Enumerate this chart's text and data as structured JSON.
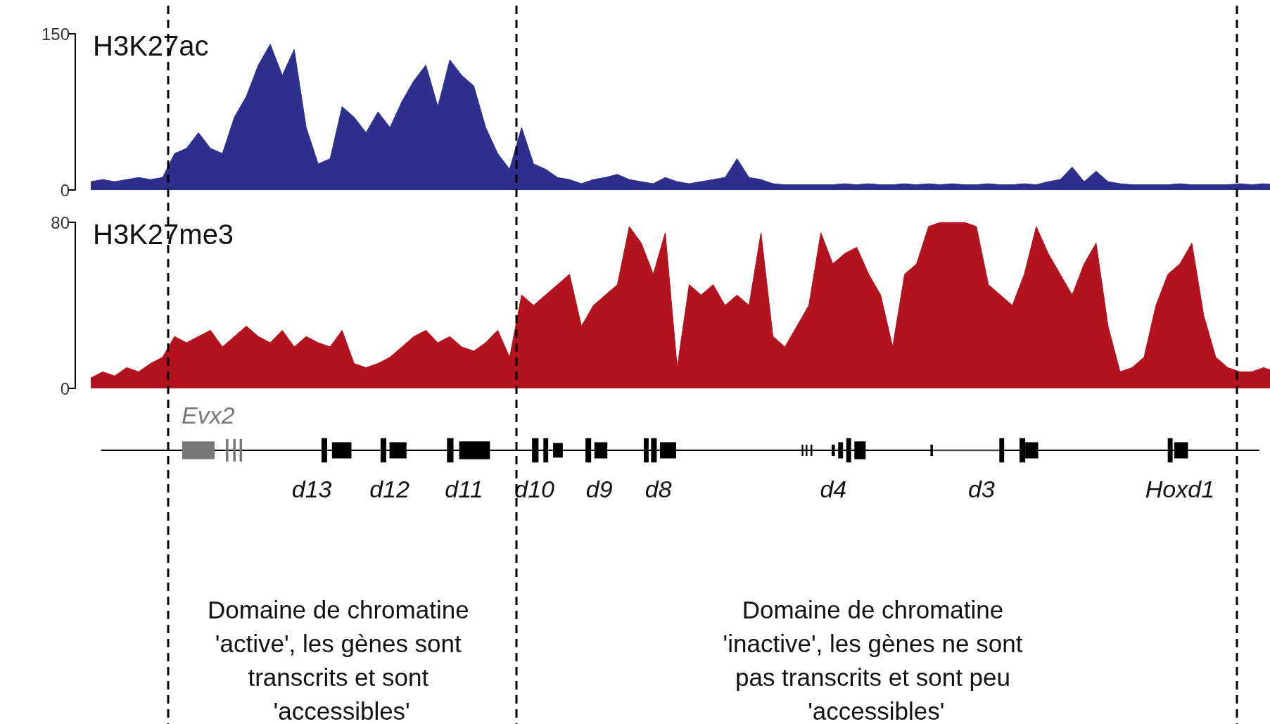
{
  "chart_data": [
    {
      "type": "area",
      "title": "H3K27ac",
      "tick_labels": "y",
      "marker": "none",
      "grid": false,
      "categories": [
        null,
        null,
        null,
        null,
        null,
        null,
        null,
        null,
        null,
        null,
        null,
        null,
        null,
        null,
        null,
        null,
        null,
        null,
        null,
        null,
        null,
        null,
        null,
        null,
        null,
        null,
        null,
        null,
        null,
        null,
        null,
        null,
        null,
        null,
        null,
        null,
        null,
        null,
        null,
        null,
        null,
        null,
        null,
        null,
        null,
        null,
        null,
        null,
        null,
        null,
        null,
        null,
        null,
        null,
        null,
        null,
        null,
        null,
        null,
        null,
        null,
        null,
        null,
        null,
        null,
        null,
        null,
        null,
        null,
        null,
        null,
        null,
        null,
        null,
        null,
        null,
        null,
        null,
        null,
        null,
        null,
        null,
        null,
        null,
        null,
        null,
        null,
        null,
        null,
        null,
        null,
        null,
        null,
        null,
        null,
        null,
        null,
        null,
        null,
        null
      ],
      "ylim": [
        0,
        150
      ],
      "yticks": [
        0,
        150
      ],
      "series": [
        {
          "color": "#2e2f8c",
          "values": [
            8,
            10,
            8,
            10,
            12,
            10,
            12,
            35,
            40,
            55,
            40,
            35,
            70,
            90,
            120,
            140,
            110,
            135,
            60,
            25,
            30,
            80,
            70,
            55,
            75,
            60,
            85,
            105,
            120,
            80,
            125,
            110,
            100,
            60,
            35,
            20,
            60,
            25,
            20,
            12,
            10,
            6,
            10,
            12,
            15,
            10,
            8,
            6,
            12,
            8,
            6,
            8,
            10,
            12,
            30,
            12,
            10,
            6,
            5,
            5,
            5,
            5,
            5,
            6,
            5,
            6,
            5,
            5,
            6,
            5,
            6,
            5,
            6,
            5,
            5,
            6,
            5,
            5,
            6,
            5,
            8,
            10,
            22,
            8,
            18,
            8,
            6,
            5,
            5,
            5,
            5,
            6,
            5,
            5,
            5,
            5,
            6,
            5,
            6,
            5
          ]
        }
      ]
    },
    {
      "type": "area",
      "title": "H3K27me3",
      "tick_labels": "y",
      "marker": "none",
      "grid": false,
      "categories": [
        null,
        null,
        null,
        null,
        null,
        null,
        null,
        null,
        null,
        null,
        null,
        null,
        null,
        null,
        null,
        null,
        null,
        null,
        null,
        null,
        null,
        null,
        null,
        null,
        null,
        null,
        null,
        null,
        null,
        null,
        null,
        null,
        null,
        null,
        null,
        null,
        null,
        null,
        null,
        null,
        null,
        null,
        null,
        null,
        null,
        null,
        null,
        null,
        null,
        null,
        null,
        null,
        null,
        null,
        null,
        null,
        null,
        null,
        null,
        null,
        null,
        null,
        null,
        null,
        null,
        null,
        null,
        null,
        null,
        null,
        null,
        null,
        null,
        null,
        null,
        null,
        null,
        null,
        null,
        null,
        null,
        null,
        null,
        null,
        null,
        null,
        null,
        null,
        null,
        null,
        null,
        null,
        null,
        null,
        null,
        null,
        null,
        null,
        null,
        null
      ],
      "ylim": [
        0,
        80
      ],
      "yticks": [
        0,
        80
      ],
      "series": [
        {
          "color": "#b3121f",
          "values": [
            5,
            8,
            6,
            10,
            8,
            12,
            15,
            25,
            22,
            25,
            28,
            20,
            25,
            30,
            25,
            22,
            28,
            20,
            25,
            22,
            20,
            28,
            12,
            10,
            12,
            15,
            20,
            25,
            28,
            22,
            25,
            20,
            18,
            22,
            28,
            15,
            45,
            40,
            45,
            50,
            55,
            30,
            40,
            45,
            50,
            78,
            70,
            55,
            75,
            10,
            50,
            45,
            50,
            40,
            45,
            40,
            75,
            25,
            20,
            30,
            40,
            75,
            60,
            65,
            68,
            55,
            45,
            20,
            55,
            60,
            78,
            80,
            80,
            80,
            78,
            50,
            45,
            40,
            55,
            78,
            65,
            55,
            45,
            60,
            70,
            30,
            8,
            10,
            15,
            40,
            55,
            60,
            70,
            35,
            15,
            10,
            8,
            8,
            10,
            8
          ]
        }
      ],
      "annotations": [
        "Evx2",
        "d13",
        "d12",
        "d11",
        "d10",
        "d9",
        "d8",
        "d4",
        "d3",
        "Hoxd1",
        "Domaine de chromatine 'active', les gènes sont transcrits et sont 'accessibles'",
        "Domaine de chromatine 'inactive', les gènes ne sont pas transcrits et sont peu 'accessibles'"
      ]
    }
  ]
}
